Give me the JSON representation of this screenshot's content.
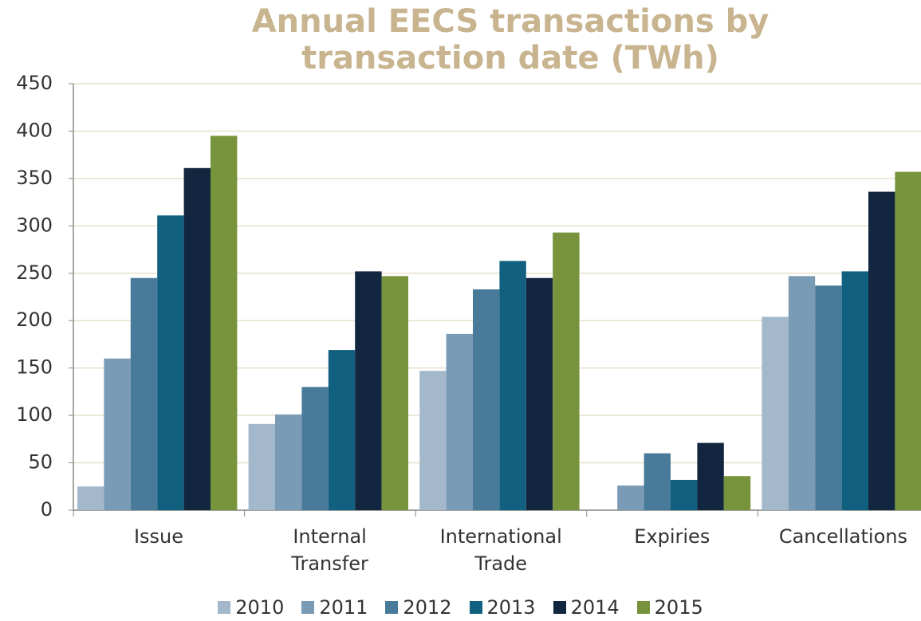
{
  "chart_data": {
    "type": "bar",
    "title": "Annual EECS transactions by transaction date (TWh)",
    "categories": [
      "Issue",
      "Internal\nTransfer",
      "International\nTrade",
      "Expiries",
      "Cancellations"
    ],
    "series": [
      {
        "name": "2010",
        "color": "#a3b9cb",
        "values": [
          25,
          91,
          147,
          0,
          204
        ]
      },
      {
        "name": "2011",
        "color": "#7a9bb5",
        "values": [
          160,
          101,
          186,
          26,
          247
        ]
      },
      {
        "name": "2012",
        "color": "#487a99",
        "values": [
          245,
          130,
          233,
          60,
          237
        ]
      },
      {
        "name": "2013",
        "color": "#11607f",
        "values": [
          311,
          169,
          263,
          32,
          252
        ]
      },
      {
        "name": "2014",
        "color": "#13263f",
        "values": [
          361,
          252,
          245,
          71,
          336
        ]
      },
      {
        "name": "2015",
        "color": "#77943c",
        "values": [
          395,
          247,
          293,
          36,
          357
        ]
      }
    ],
    "ylim": [
      0,
      450
    ],
    "yticks": [
      0,
      50,
      100,
      150,
      200,
      250,
      300,
      350,
      400,
      450
    ],
    "grid": true,
    "legend": "bottom"
  }
}
